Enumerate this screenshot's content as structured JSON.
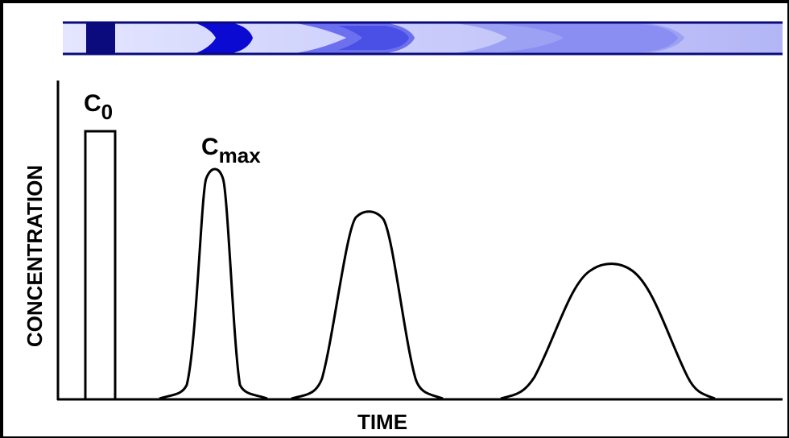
{
  "diagram": {
    "y_axis_label": "CONCENTRATION",
    "x_axis_label": "TIME",
    "initial_label": {
      "base": "C",
      "subscript": "0"
    },
    "peak_label": {
      "base": "C",
      "subscript": "max"
    },
    "colors": {
      "tube_background": "#d6d9ff",
      "tube_outline": "#0a0a7a",
      "band_initial": "#0b0b7e",
      "band_1": "#0a0ac8",
      "band_2": "#5a5ff0",
      "band_3": "#8c90f4",
      "curve": "#000000"
    }
  }
}
